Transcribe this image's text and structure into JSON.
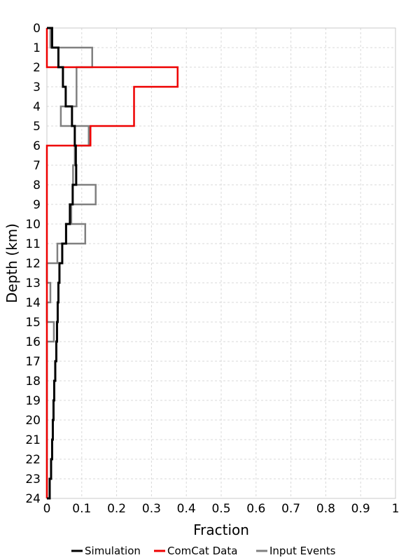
{
  "chart_data": {
    "type": "line",
    "title": "",
    "xlabel": "Fraction",
    "ylabel": "Depth (km)",
    "xlim": [
      0,
      1
    ],
    "ylim": [
      0,
      24
    ],
    "y_inverted": true,
    "grid": true,
    "legend_position": "bottom",
    "x_ticks": [
      "0",
      "0.1",
      "0.2",
      "0.3",
      "0.4",
      "0.5",
      "0.6",
      "0.7",
      "0.8",
      "0.9",
      "1"
    ],
    "y_ticks": [
      "0",
      "1",
      "2",
      "3",
      "4",
      "5",
      "6",
      "7",
      "8",
      "9",
      "10",
      "11",
      "12",
      "13",
      "14",
      "15",
      "16",
      "17",
      "18",
      "19",
      "20",
      "21",
      "22",
      "23",
      "24"
    ],
    "depth_bins": [
      0,
      1,
      2,
      3,
      4,
      5,
      6,
      7,
      8,
      9,
      10,
      11,
      12,
      13,
      14,
      15,
      16,
      17,
      18,
      19,
      20,
      21,
      22,
      23
    ],
    "series": [
      {
        "name": "Input Events",
        "color": "#808080",
        "values": [
          0.01,
          0.13,
          0.085,
          0.085,
          0.04,
          0.12,
          0.08,
          0.075,
          0.14,
          0.07,
          0.11,
          0.03,
          0.0,
          0.01,
          0.0,
          0.02,
          0.0,
          0.0,
          0.0,
          0.0,
          0.0,
          0.0,
          0.0,
          0.0
        ]
      },
      {
        "name": "ComCat Data",
        "color": "#ee0000",
        "values": [
          0.0,
          0.0,
          0.375,
          0.25,
          0.25,
          0.125,
          0.0,
          0.0,
          0.0,
          0.0,
          0.0,
          0.0,
          0.0,
          0.0,
          0.0,
          0.0,
          0.0,
          0.0,
          0.0,
          0.0,
          0.0,
          0.0,
          0.0,
          0.0
        ]
      },
      {
        "name": "Simulation",
        "color": "#000000",
        "values": [
          0.015,
          0.033,
          0.046,
          0.054,
          0.072,
          0.08,
          0.083,
          0.084,
          0.074,
          0.066,
          0.055,
          0.044,
          0.036,
          0.033,
          0.031,
          0.029,
          0.027,
          0.024,
          0.021,
          0.019,
          0.017,
          0.015,
          0.012,
          0.008
        ]
      }
    ],
    "legend": [
      "Simulation",
      "ComCat Data",
      "Input Events"
    ]
  }
}
